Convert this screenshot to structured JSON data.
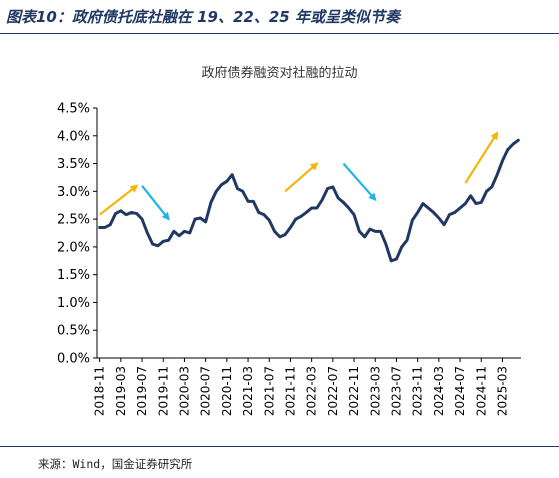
{
  "figure_title": "图表10：政府债托底社融在 19、22、25 年或呈类似节奏",
  "source": "来源：Wind，国金证券研究所",
  "chart_data": {
    "type": "line",
    "title": "政府债券融资对社融的拉动",
    "xlabel": "",
    "ylabel": "",
    "ylim": [
      0,
      4.5
    ],
    "y_ticks": [
      "0.0%",
      "0.5%",
      "1.0%",
      "1.5%",
      "2.0%",
      "2.5%",
      "3.0%",
      "3.5%",
      "4.0%",
      "4.5%"
    ],
    "x_tick_labels": [
      "2018-11",
      "2019-03",
      "2019-07",
      "2019-11",
      "2020-03",
      "2020-07",
      "2020-11",
      "2021-03",
      "2021-07",
      "2021-11",
      "2022-03",
      "2022-07",
      "2022-11",
      "2023-03",
      "2023-07",
      "2023-11",
      "2024-03",
      "2024-07",
      "2024-11",
      "2025-03"
    ],
    "grid": false,
    "line_color": "#1f3864",
    "x": [
      "2018-11",
      "2018-12",
      "2019-01",
      "2019-02",
      "2019-03",
      "2019-04",
      "2019-05",
      "2019-06",
      "2019-07",
      "2019-08",
      "2019-09",
      "2019-10",
      "2019-11",
      "2019-12",
      "2020-01",
      "2020-02",
      "2020-03",
      "2020-04",
      "2020-05",
      "2020-06",
      "2020-07",
      "2020-08",
      "2020-09",
      "2020-10",
      "2020-11",
      "2020-12",
      "2021-01",
      "2021-02",
      "2021-03",
      "2021-04",
      "2021-05",
      "2021-06",
      "2021-07",
      "2021-08",
      "2021-09",
      "2021-10",
      "2021-11",
      "2021-12",
      "2022-01",
      "2022-02",
      "2022-03",
      "2022-04",
      "2022-05",
      "2022-06",
      "2022-07",
      "2022-08",
      "2022-09",
      "2022-10",
      "2022-11",
      "2022-12",
      "2023-01",
      "2023-02",
      "2023-03",
      "2023-04",
      "2023-05",
      "2023-06",
      "2023-07",
      "2023-08",
      "2023-09",
      "2023-10",
      "2023-11",
      "2023-12",
      "2024-01",
      "2024-02",
      "2024-03",
      "2024-04",
      "2024-05",
      "2024-06",
      "2024-07",
      "2024-08",
      "2024-09",
      "2024-10",
      "2024-11",
      "2024-12",
      "2025-01",
      "2025-02",
      "2025-03",
      "2025-04",
      "2025-05",
      "2025-06"
    ],
    "values": [
      2.35,
      2.35,
      2.4,
      2.6,
      2.65,
      2.58,
      2.62,
      2.6,
      2.5,
      2.25,
      2.05,
      2.02,
      2.1,
      2.12,
      2.28,
      2.2,
      2.28,
      2.25,
      2.5,
      2.52,
      2.45,
      2.8,
      3.0,
      3.12,
      3.18,
      3.3,
      3.05,
      3.0,
      2.82,
      2.82,
      2.62,
      2.58,
      2.48,
      2.28,
      2.18,
      2.22,
      2.35,
      2.5,
      2.55,
      2.62,
      2.7,
      2.7,
      2.85,
      3.05,
      3.08,
      2.88,
      2.8,
      2.7,
      2.58,
      2.28,
      2.18,
      2.32,
      2.28,
      2.28,
      2.05,
      1.75,
      1.78,
      2.0,
      2.12,
      2.48,
      2.62,
      2.78,
      2.7,
      2.62,
      2.52,
      2.4,
      2.58,
      2.62,
      2.7,
      2.78,
      2.92,
      2.78,
      2.8,
      3.0,
      3.08,
      3.3,
      3.55,
      3.75,
      3.85,
      3.92
    ],
    "annotations": [
      {
        "type": "arrow",
        "color": "#f5b50a",
        "from": [
          "2018-11",
          2.58
        ],
        "to": [
          "2019-06",
          3.1
        ]
      },
      {
        "type": "arrow",
        "color": "#1fb4e6",
        "from": [
          "2019-07",
          3.1
        ],
        "to": [
          "2019-12",
          2.5
        ]
      },
      {
        "type": "arrow",
        "color": "#f5b50a",
        "from": [
          "2021-10",
          3.0
        ],
        "to": [
          "2022-04",
          3.5
        ]
      },
      {
        "type": "arrow",
        "color": "#1fb4e6",
        "from": [
          "2022-09",
          3.5
        ],
        "to": [
          "2023-03",
          2.85
        ]
      },
      {
        "type": "arrow",
        "color": "#f5b50a",
        "from": [
          "2024-08",
          3.15
        ],
        "to": [
          "2025-02",
          4.05
        ]
      }
    ]
  }
}
